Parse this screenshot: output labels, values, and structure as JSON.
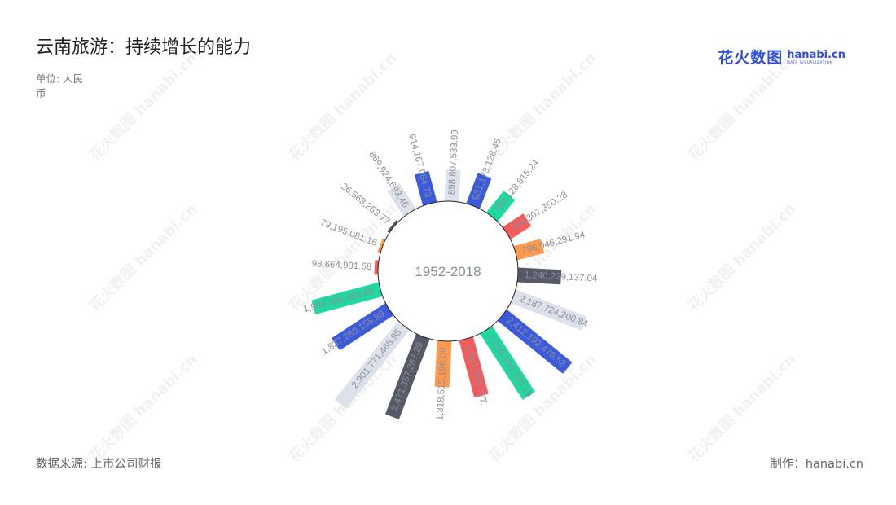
{
  "title": "云南旅游：持续增长的能力",
  "unit": "单位: 人民币",
  "source": "数据来源: 上市公司财报",
  "credit": "制作：hanabi.cn",
  "logo": {
    "cn": "花火数图",
    "en": "hanabi.cn",
    "sub": "DATA VISUALIZATION"
  },
  "watermark": "花火数图 hanabi.cn",
  "chart_data": {
    "type": "bar",
    "polar": true,
    "center_label": "1952-2018",
    "categories": [
      "898,807,533.99",
      "931,173,128.45",
      "790,128,615.24",
      "704,307,350.28",
      "796,946,291.94",
      "1,240,229,137.04",
      "2,187,724,200.84",
      "2,412,192,476.52",
      "2,258,193,933.19",
      "1,691,856,797.",
      "1,318,515,196.09",
      "2,471,357,287.29",
      "2,901,771,468.95",
      "1,837,280,158.89",
      "1,994,386,465.85",
      "98,664,901.68",
      "79,195,081.16",
      "26,563,253.77",
      "869,924,693.46",
      "914,167,084.73"
    ],
    "values": [
      898807533.99,
      931173128.45,
      790128615.24,
      704307350.28,
      796946291.94,
      1240229137.04,
      2187724200.84,
      2412192476.52,
      2258193933.19,
      1691856797,
      1318515196.09,
      2471357287.29,
      2901771468.95,
      1837280158.89,
      1994386465.85,
      98664901.68,
      79195081.16,
      26563253.77,
      869924693.46,
      914167084.73
    ],
    "colors": [
      "#dce1ea",
      "#3b5bdb",
      "#1ed9a0",
      "#f45b5b",
      "#ff9a4d",
      "#555a66"
    ]
  }
}
